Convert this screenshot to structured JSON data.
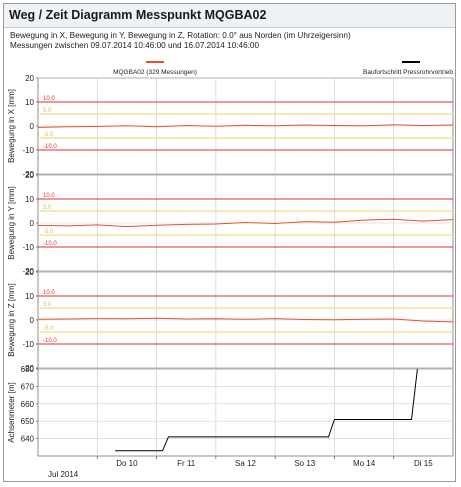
{
  "title": "Weg / Zeit Diagramm Messpunkt MQGBA02",
  "subtitle_line1": "Bewegung in X, Bewegung in Y, Bewegung in Z, Rotation: 0.0° aus Norden (im Uhrzeigersinn)",
  "subtitle_line2": "Messungen zwischen 09.07.2014 10:46:00 und 16.07.2014 10:46:00",
  "legend": {
    "series1": "MQGBA02 (329 Messungen)",
    "series2": "Baufortschritt Pressrohrvortrieb",
    "series1_color": "#e8502e",
    "series2_color": "#000000"
  },
  "x_axis": {
    "ticks": [
      "Do 10",
      "Fr 11",
      "Sa 12",
      "So 13",
      "Mo 14",
      "Di 15"
    ],
    "footer": "Jul 2014"
  },
  "colors": {
    "limit_red": "#e03030",
    "warn_yellow": "#f3e49a",
    "grid": "#d0d0d0"
  },
  "chart_data": [
    {
      "type": "line",
      "ylabel": "Bewegung in X [mm]",
      "ylim": [
        -20,
        20
      ],
      "yticks": [
        -20,
        -10,
        0,
        10,
        20
      ],
      "limits": {
        "alarm": [
          10.0,
          -10.0
        ],
        "warn": [
          5.0,
          -5.0
        ],
        "labels": [
          "10.0",
          "5.0",
          "-5.0",
          "-10.0"
        ]
      },
      "series": [
        {
          "name": "MQGBA02 (329 Messungen)",
          "x": [
            9.0,
            9.5,
            10.0,
            10.5,
            11.0,
            11.5,
            12.0,
            12.5,
            13.0,
            13.5,
            14.0,
            14.5,
            15.0,
            15.5,
            16.0
          ],
          "y": [
            -0.6,
            -0.3,
            -0.2,
            0.1,
            -0.3,
            0.2,
            -0.1,
            0.3,
            0.1,
            0.4,
            0.2,
            0.1,
            0.5,
            0.2,
            0.4
          ]
        }
      ]
    },
    {
      "type": "line",
      "ylabel": "Bewegung in Y [mm]",
      "ylim": [
        -20,
        20
      ],
      "yticks": [
        -20,
        -10,
        0,
        10,
        20
      ],
      "limits": {
        "alarm": [
          10.0,
          -10.0
        ],
        "warn": [
          5.0,
          -5.0
        ],
        "labels": [
          "10.0",
          "5.0",
          "-5.0",
          "-10.0"
        ]
      },
      "series": [
        {
          "name": "MQGBA02 (329 Messungen)",
          "x": [
            9.0,
            9.5,
            10.0,
            10.5,
            11.0,
            11.5,
            12.0,
            12.5,
            13.0,
            13.5,
            14.0,
            14.5,
            15.0,
            15.5,
            16.0
          ],
          "y": [
            -1.0,
            -1.2,
            -0.8,
            -1.5,
            -0.9,
            -0.6,
            -0.4,
            0.2,
            -0.2,
            0.6,
            0.3,
            1.2,
            1.6,
            0.8,
            1.4
          ]
        }
      ]
    },
    {
      "type": "line",
      "ylabel": "Bewegung in Z [mm]",
      "ylim": [
        -20,
        20
      ],
      "yticks": [
        -20,
        -10,
        0,
        10,
        20
      ],
      "limits": {
        "alarm": [
          10.0,
          -10.0
        ],
        "warn": [
          5.0,
          -5.0
        ],
        "labels": [
          "10.0",
          "5.0",
          "-5.0",
          "-10.0"
        ]
      },
      "series": [
        {
          "name": "MQGBA02 (329 Messungen)",
          "x": [
            9.0,
            9.5,
            10.0,
            10.5,
            11.0,
            11.5,
            12.0,
            12.5,
            13.0,
            13.5,
            14.0,
            14.5,
            15.0,
            15.5,
            16.0
          ],
          "y": [
            0.3,
            0.4,
            0.6,
            0.5,
            0.7,
            0.4,
            0.5,
            0.3,
            0.6,
            0.2,
            0.1,
            0.3,
            0.4,
            -0.4,
            -0.8
          ]
        }
      ]
    },
    {
      "type": "line",
      "ylabel": "Achsenmeter [m]",
      "ylim": [
        630,
        680
      ],
      "yticks": [
        640,
        650,
        660,
        670,
        680
      ],
      "step": true,
      "series": [
        {
          "name": "Baufortschritt Pressrohrvortrieb",
          "x": [
            10.3,
            11.1,
            11.2,
            13.9,
            14.0,
            15.3,
            15.4
          ],
          "y": [
            633,
            633,
            641,
            641,
            651,
            651,
            680
          ]
        }
      ]
    }
  ]
}
